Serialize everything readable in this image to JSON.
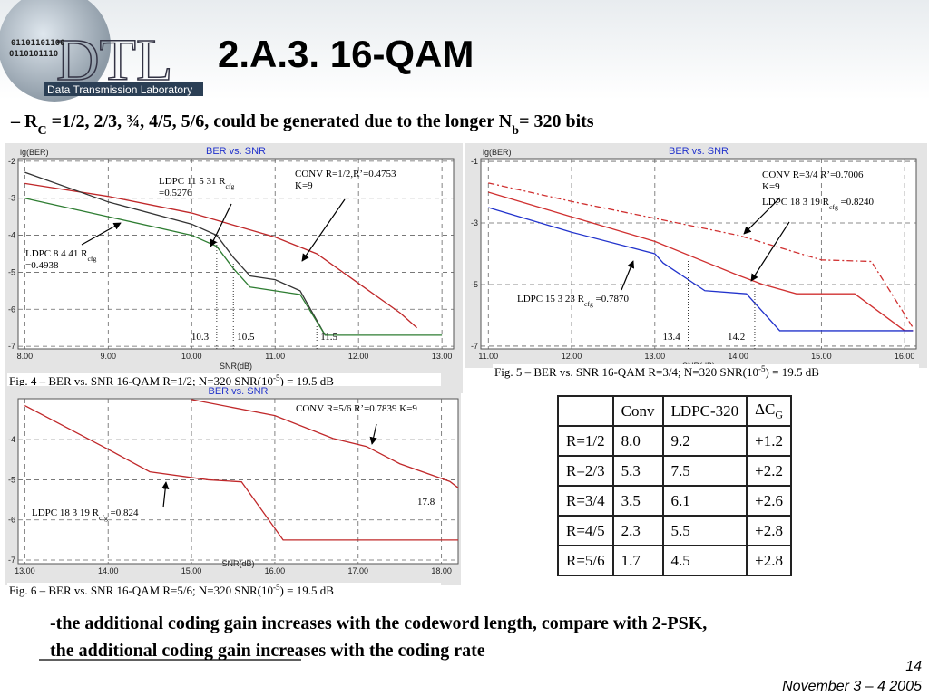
{
  "logo": {
    "name": "DTL",
    "lab": "Data Transmission Laboratory",
    "bits": [
      "01101101100",
      "0110101110"
    ]
  },
  "header": {
    "title": "2.A.3. 16-QAM",
    "subtitle": [
      "– R",
      "C",
      " =1/2, 2/3, ¾, 4/5, 5/6, could be generated due to the longer N",
      "b",
      "= 320 bits"
    ]
  },
  "chart_data": [
    {
      "type": "line",
      "title": "BER vs. SNR",
      "y_label": "lg(BER)",
      "x_label": "SNR(dB)",
      "xlim": [
        7.92,
        13.14
      ],
      "xticks": [
        {
          "value": 8,
          "label": "8.00"
        },
        {
          "value": 9,
          "label": "9.00"
        },
        {
          "value": 10,
          "label": "10.00"
        },
        {
          "value": 11,
          "label": "11.00"
        },
        {
          "value": 12,
          "label": "12.00"
        },
        {
          "value": 13,
          "label": "13.00"
        }
      ],
      "ylim": [
        -7.07,
        -1.93
      ],
      "yticks": [
        -2,
        -3,
        -4,
        -5,
        -6,
        -7
      ],
      "grid": true,
      "series": [
        {
          "color": "#c0282a",
          "x": [
            8,
            9,
            10,
            11,
            11.5,
            12,
            12.5,
            12.7
          ],
          "values": [
            -2.6,
            -2.95,
            -3.4,
            -4.05,
            -4.5,
            -5.3,
            -6.1,
            -6.5
          ]
        },
        {
          "color": "#333333",
          "x": [
            8,
            9,
            10,
            10.3,
            10.5,
            10.7,
            11,
            11.3,
            11.6
          ],
          "values": [
            -2.3,
            -3.1,
            -3.7,
            -4.0,
            -4.6,
            -5.1,
            -5.2,
            -5.5,
            -6.7
          ]
        },
        {
          "color": "#2e7d32",
          "x": [
            8,
            9,
            10,
            10.3,
            10.5,
            10.7,
            11,
            11.3,
            11.6,
            13
          ],
          "values": [
            -3.0,
            -3.5,
            -4.0,
            -4.3,
            -4.9,
            -5.4,
            -5.5,
            -5.6,
            -6.7,
            -6.7
          ]
        }
      ],
      "markers": [
        10.3,
        10.5,
        11.5
      ],
      "annotations": [
        [
          [
            "LDPC 11 5 31 R",
            "cfg"
          ],
          [
            "=0.5276"
          ]
        ],
        [
          [
            "CONV R=1/2,R’=0.4753"
          ],
          [
            "K=9"
          ]
        ],
        [
          [
            "LDPC 8 4 41 R",
            "cfg"
          ],
          [
            "=0.4938"
          ]
        ]
      ],
      "caption": [
        "Fig. 4 – BER vs. SNR 16-QAM R=1/2; N=320 SNR(10",
        "-5",
        ") = 19.5 dB"
      ]
    },
    {
      "type": "line",
      "title": "BER vs. SNR",
      "y_label": "lg(BER)",
      "x_label": "SNR(dB)",
      "xlim": [
        10.91,
        16.14
      ],
      "xticks": [
        {
          "value": 11,
          "label": "11.00"
        },
        {
          "value": 12,
          "label": "12.00"
        },
        {
          "value": 13,
          "label": "13.00"
        },
        {
          "value": 14,
          "label": "14.00"
        },
        {
          "value": 15,
          "label": "15.00"
        },
        {
          "value": 16,
          "label": "16.00"
        }
      ],
      "ylim": [
        -7.09,
        -0.91
      ],
      "yticks": [
        -1,
        -3,
        -5,
        -7
      ],
      "grid": true,
      "series": [
        {
          "color": "#d03030",
          "dashed": true,
          "x": [
            11,
            12,
            13,
            14,
            15,
            15.6,
            16.1
          ],
          "values": [
            -1.7,
            -2.3,
            -2.85,
            -3.4,
            -4.2,
            -4.25,
            -6.4
          ]
        },
        {
          "color": "#d03030",
          "x": [
            11,
            12,
            13,
            14,
            14.3,
            14.7,
            15.4,
            16,
            16.1
          ],
          "values": [
            -2.0,
            -2.8,
            -3.6,
            -4.7,
            -5.0,
            -5.3,
            -5.3,
            -6.5,
            -6.5
          ]
        },
        {
          "color": "#2233cc",
          "x": [
            11,
            12,
            13,
            13.1,
            13.6,
            14.1,
            14.5,
            16.1
          ],
          "values": [
            -2.5,
            -3.3,
            -4.0,
            -4.3,
            -5.2,
            -5.3,
            -6.5,
            -6.5
          ]
        }
      ],
      "markers": [
        13.4,
        14.2
      ],
      "annotations": [
        [
          [
            "CONV R=3/4 R’=0.7006"
          ],
          [
            "K=9"
          ]
        ],
        [
          [
            "LDPC 18 3 19 R",
            "cfg",
            " =0.8240"
          ]
        ],
        [
          [
            "LDPC 15 3 23 R",
            "cfg",
            " =0.7870"
          ]
        ]
      ],
      "caption": [
        "Fig. 5 – BER vs. SNR 16-QAM R=3/4; N=320 SNR(10",
        "-5",
        ") = 19.5 dB"
      ]
    },
    {
      "type": "line",
      "title": "BER vs. SNR",
      "x_label": "SNR(dB)",
      "xlim": [
        12.92,
        18.2
      ],
      "xticks": [
        {
          "value": 13,
          "label": "13.00"
        },
        {
          "value": 14,
          "label": "14.00"
        },
        {
          "value": 15,
          "label": "15.00"
        },
        {
          "value": 16,
          "label": "16.00"
        },
        {
          "value": 17,
          "label": "17.00"
        },
        {
          "value": 18,
          "label": "18.00"
        }
      ],
      "ylim": [
        -7.09,
        -2.98
      ],
      "yticks": [
        -4,
        -5,
        -6,
        -7
      ],
      "grid": true,
      "series": [
        {
          "color": "#c0282a",
          "x": [
            15.0,
            16.0,
            16.7,
            17.1,
            17.5,
            18.1,
            18.2
          ],
          "values": [
            -3.0,
            -3.4,
            -3.97,
            -4.17,
            -4.6,
            -5.04,
            -5.2
          ]
        },
        {
          "color": "#c0282a",
          "x": [
            13,
            14,
            14.5,
            15.2,
            15.6,
            16.1,
            18.2
          ],
          "values": [
            -3.15,
            -4.24,
            -4.8,
            -5.0,
            -5.05,
            -6.5,
            -6.5
          ]
        }
      ],
      "annotations": [
        [
          [
            "CONV R=5/6 R’=0.7839 K=9"
          ]
        ],
        [
          [
            "LDPC 18 3 19 R",
            "cfg",
            " =0.824"
          ]
        ],
        [
          [
            "17.8"
          ]
        ]
      ],
      "caption": [
        "Fig. 6 – BER vs. SNR 16-QAM R=5/6; N=320 SNR(10",
        "-5",
        ") = 19.5 dB"
      ]
    }
  ],
  "table": {
    "header": [
      "Conv",
      "LDPC-320",
      "ΔC"
    ],
    "header_sub": "G",
    "rows": [
      [
        "R=1/2",
        "8.0",
        "9.2",
        "+1.2"
      ],
      [
        "R=2/3",
        "5.3",
        "7.5",
        "+2.2"
      ],
      [
        "R=3/4",
        "3.5",
        "6.1",
        "+2.6"
      ],
      [
        "R=4/5",
        "2.3",
        "5.5",
        "+2.8"
      ],
      [
        "R=5/6",
        "1.7",
        "4.5",
        "+2.8"
      ]
    ]
  },
  "notes": [
    "-the additional coding gain increases with the codeword length, compare with 2-PSK,",
    "the additional coding gain increases with the coding rate"
  ],
  "footer": {
    "page": "14",
    "date": "November 3 – 4 2005"
  }
}
